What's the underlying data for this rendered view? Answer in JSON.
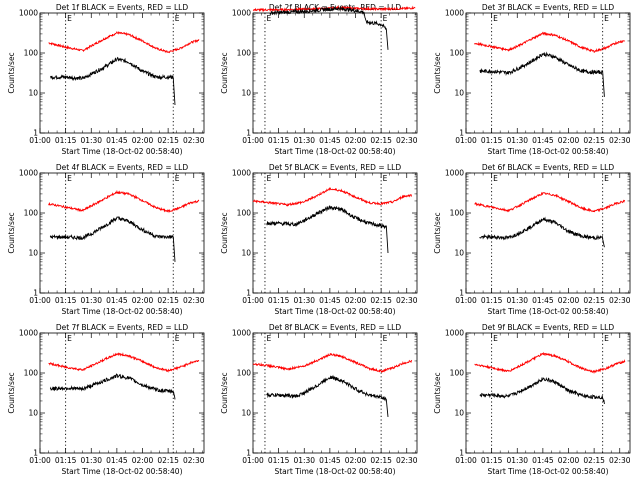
{
  "panels_layout": "3x3",
  "colors": {
    "events": "#000000",
    "lld": "#ff0000",
    "axes": "#000000",
    "marker": "#000000"
  },
  "chart_data": [
    {
      "type": "line",
      "title": "Det 1f BLACK = Events, RED = LLD",
      "xlabel": "Start Time (18-Oct-02 00:58:40)",
      "ylabel": "Counts/sec",
      "yscale": "log",
      "ylim": [
        1,
        1000
      ],
      "xlim": [
        "01:00",
        "02:36"
      ],
      "xticks": [
        "01:00",
        "01:15",
        "01:30",
        "01:45",
        "02:00",
        "02:15",
        "02:30"
      ],
      "yticks": [
        "1",
        "10",
        "100",
        "1000"
      ],
      "markers": [
        "01:15",
        "02:18"
      ],
      "marker_labels": [
        "E",
        "E"
      ],
      "series": [
        {
          "role": "lld",
          "x": [
            "01:05",
            "01:15",
            "01:25",
            "01:30",
            "01:38",
            "01:45",
            "01:52",
            "02:00",
            "02:08",
            "02:15",
            "02:22",
            "02:28",
            "02:33"
          ],
          "values": [
            180,
            140,
            115,
            150,
            230,
            320,
            290,
            200,
            130,
            105,
            130,
            180,
            210
          ]
        },
        {
          "role": "events",
          "x": [
            "01:06",
            "01:15",
            "01:25",
            "01:30",
            "01:38",
            "01:45",
            "01:52",
            "02:00",
            "02:08",
            "02:15",
            "02:18",
            "02:19"
          ],
          "values": [
            25,
            25,
            23,
            30,
            45,
            70,
            60,
            35,
            25,
            25,
            25,
            5
          ]
        }
      ]
    },
    {
      "type": "line",
      "title": "Det 2f BLACK = Events, RED = LLD",
      "xlabel": "Start Time (18-Oct-02 00:58:40)",
      "ylabel": "Counts/sec",
      "yscale": "log",
      "ylim": [
        1,
        1000
      ],
      "xlim": [
        "01:00",
        "02:36"
      ],
      "xticks": [
        "01:00",
        "01:15",
        "01:30",
        "01:45",
        "02:00",
        "02:15",
        "02:30"
      ],
      "yticks": [
        "1",
        "10",
        "100",
        "1000"
      ],
      "markers": [
        "01:07",
        "02:15"
      ],
      "marker_labels": [
        "E",
        "E"
      ],
      "series": [
        {
          "role": "lld",
          "x": [
            "01:00",
            "01:15",
            "01:30",
            "01:45",
            "01:50",
            "02:00",
            "02:15",
            "02:30",
            "02:35"
          ],
          "values": [
            1200,
            1200,
            1250,
            1300,
            1350,
            1300,
            1250,
            1300,
            1350
          ]
        },
        {
          "role": "events",
          "x": [
            "01:10",
            "01:20",
            "01:30",
            "01:45",
            "01:50",
            "02:00",
            "02:05",
            "02:06",
            "02:15",
            "02:18",
            "02:19"
          ],
          "values": [
            1000,
            1050,
            1100,
            1250,
            1300,
            1150,
            1050,
            600,
            520,
            400,
            120
          ]
        }
      ]
    },
    {
      "type": "line",
      "title": "Det 3f BLACK = Events, RED = LLD",
      "xlabel": "Start Time (18-Oct-02 00:58:40)",
      "ylabel": "Counts/sec",
      "yscale": "log",
      "ylim": [
        1,
        1000
      ],
      "xlim": [
        "01:00",
        "02:36"
      ],
      "xticks": [
        "01:00",
        "01:15",
        "01:30",
        "01:45",
        "02:00",
        "02:15",
        "02:30"
      ],
      "yticks": [
        "1",
        "10",
        "100",
        "1000"
      ],
      "markers": [
        "01:15",
        "02:20"
      ],
      "marker_labels": [
        "E",
        "E"
      ],
      "series": [
        {
          "role": "lld",
          "x": [
            "01:05",
            "01:15",
            "01:25",
            "01:30",
            "01:38",
            "01:45",
            "01:52",
            "02:00",
            "02:08",
            "02:15",
            "02:22",
            "02:28",
            "02:33"
          ],
          "values": [
            175,
            145,
            120,
            145,
            220,
            310,
            280,
            200,
            135,
            110,
            135,
            180,
            205
          ]
        },
        {
          "role": "events",
          "x": [
            "01:08",
            "01:15",
            "01:25",
            "01:30",
            "01:38",
            "01:45",
            "01:52",
            "02:00",
            "02:08",
            "02:15",
            "02:20",
            "02:21"
          ],
          "values": [
            35,
            35,
            32,
            40,
            60,
            95,
            80,
            50,
            35,
            33,
            33,
            8
          ]
        }
      ]
    },
    {
      "type": "line",
      "title": "Det 4f BLACK = Events, RED = LLD",
      "xlabel": "Start Time (18-Oct-02 00:58:40)",
      "ylabel": "Counts/sec",
      "yscale": "log",
      "ylim": [
        1,
        1000
      ],
      "xlim": [
        "01:00",
        "02:36"
      ],
      "xticks": [
        "01:00",
        "01:15",
        "01:30",
        "01:45",
        "02:00",
        "02:15",
        "02:30"
      ],
      "yticks": [
        "1",
        "10",
        "100",
        "1000"
      ],
      "markers": [
        "01:15",
        "02:18"
      ],
      "marker_labels": [
        "E",
        "E"
      ],
      "series": [
        {
          "role": "lld",
          "x": [
            "01:05",
            "01:15",
            "01:25",
            "01:30",
            "01:38",
            "01:45",
            "01:52",
            "02:00",
            "02:08",
            "02:15",
            "02:22",
            "02:28",
            "02:33"
          ],
          "values": [
            170,
            140,
            115,
            150,
            230,
            330,
            300,
            205,
            135,
            110,
            135,
            180,
            200
          ]
        },
        {
          "role": "events",
          "x": [
            "01:06",
            "01:15",
            "01:25",
            "01:30",
            "01:38",
            "01:45",
            "01:52",
            "02:00",
            "02:08",
            "02:15",
            "02:18",
            "02:19"
          ],
          "values": [
            25,
            25,
            24,
            30,
            48,
            75,
            62,
            38,
            26,
            25,
            25,
            6
          ]
        }
      ]
    },
    {
      "type": "line",
      "title": "Det 5f BLACK = Events, RED = LLD",
      "xlabel": "Start Time (18-Oct-02 00:58:40)",
      "ylabel": "Counts/sec",
      "yscale": "log",
      "ylim": [
        1,
        1000
      ],
      "xlim": [
        "01:00",
        "02:36"
      ],
      "xticks": [
        "01:00",
        "01:15",
        "01:30",
        "01:45",
        "02:00",
        "02:15",
        "02:30"
      ],
      "yticks": [
        "1",
        "10",
        "100",
        "1000"
      ],
      "markers": [
        "01:07",
        "02:15"
      ],
      "marker_labels": [
        "E",
        "E"
      ],
      "series": [
        {
          "role": "lld",
          "x": [
            "01:00",
            "01:10",
            "01:20",
            "01:30",
            "01:38",
            "01:45",
            "01:52",
            "02:00",
            "02:08",
            "02:15",
            "02:22",
            "02:28",
            "02:33"
          ],
          "values": [
            200,
            180,
            160,
            190,
            280,
            400,
            360,
            250,
            180,
            170,
            190,
            260,
            280
          ]
        },
        {
          "role": "events",
          "x": [
            "01:08",
            "01:15",
            "01:25",
            "01:30",
            "01:38",
            "01:45",
            "01:52",
            "02:00",
            "02:08",
            "02:15",
            "02:18",
            "02:19"
          ],
          "values": [
            55,
            55,
            52,
            65,
            100,
            140,
            120,
            75,
            55,
            48,
            45,
            10
          ]
        }
      ]
    },
    {
      "type": "line",
      "title": "Det 6f BLACK = Events, RED = LLD",
      "xlabel": "Start Time (18-Oct-02 00:58:40)",
      "ylabel": "Counts/sec",
      "yscale": "log",
      "ylim": [
        1,
        1000
      ],
      "xlim": [
        "01:00",
        "02:36"
      ],
      "xticks": [
        "01:00",
        "01:15",
        "01:30",
        "01:45",
        "02:00",
        "02:15",
        "02:30"
      ],
      "yticks": [
        "1",
        "10",
        "100",
        "1000"
      ],
      "markers": [
        "01:15",
        "02:20"
      ],
      "marker_labels": [
        "E",
        "E"
      ],
      "series": [
        {
          "role": "lld",
          "x": [
            "01:05",
            "01:15",
            "01:25",
            "01:30",
            "01:38",
            "01:45",
            "01:52",
            "02:00",
            "02:08",
            "02:15",
            "02:22",
            "02:28",
            "02:33"
          ],
          "values": [
            170,
            140,
            115,
            145,
            220,
            310,
            280,
            195,
            130,
            110,
            135,
            175,
            200
          ]
        },
        {
          "role": "events",
          "x": [
            "01:08",
            "01:15",
            "01:25",
            "01:30",
            "01:38",
            "01:45",
            "01:52",
            "02:00",
            "02:08",
            "02:15",
            "02:20",
            "02:21"
          ],
          "values": [
            25,
            25,
            24,
            30,
            45,
            70,
            58,
            35,
            26,
            24,
            24,
            14
          ]
        }
      ]
    },
    {
      "type": "line",
      "title": "Det 7f BLACK = Events, RED = LLD",
      "xlabel": "Start Time (18-Oct-02 00:58:40)",
      "ylabel": "Counts/sec",
      "yscale": "log",
      "ylim": [
        1,
        1000
      ],
      "xlim": [
        "01:00",
        "02:36"
      ],
      "xticks": [
        "01:00",
        "01:15",
        "01:30",
        "01:45",
        "02:00",
        "02:15",
        "02:30"
      ],
      "yticks": [
        "1",
        "10",
        "100",
        "1000"
      ],
      "markers": [
        "01:15",
        "02:18"
      ],
      "marker_labels": [
        "E",
        "E"
      ],
      "series": [
        {
          "role": "lld",
          "x": [
            "01:05",
            "01:15",
            "01:25",
            "01:30",
            "01:38",
            "01:45",
            "01:52",
            "02:00",
            "02:08",
            "02:15",
            "02:22",
            "02:28",
            "02:33"
          ],
          "values": [
            175,
            140,
            120,
            150,
            220,
            300,
            270,
            195,
            135,
            115,
            140,
            180,
            205
          ]
        },
        {
          "role": "events",
          "x": [
            "01:06",
            "01:15",
            "01:25",
            "01:30",
            "01:38",
            "01:45",
            "01:52",
            "02:00",
            "02:08",
            "02:15",
            "02:18",
            "02:19"
          ],
          "values": [
            40,
            42,
            40,
            48,
            65,
            85,
            75,
            50,
            38,
            35,
            35,
            22
          ]
        }
      ]
    },
    {
      "type": "line",
      "title": "Det 8f BLACK = Events, RED = LLD",
      "xlabel": "Start Time (18-Oct-02 00:58:40)",
      "ylabel": "Counts/sec",
      "yscale": "log",
      "ylim": [
        1,
        1000
      ],
      "xlim": [
        "01:00",
        "02:36"
      ],
      "xticks": [
        "01:00",
        "01:15",
        "01:30",
        "01:45",
        "02:00",
        "02:15",
        "02:30"
      ],
      "yticks": [
        "1",
        "10",
        "100",
        "1000"
      ],
      "markers": [
        "01:07",
        "02:15"
      ],
      "marker_labels": [
        "E",
        "E"
      ],
      "series": [
        {
          "role": "lld",
          "x": [
            "01:00",
            "01:10",
            "01:20",
            "01:30",
            "01:38",
            "01:45",
            "01:52",
            "02:00",
            "02:08",
            "02:15",
            "02:22",
            "02:28",
            "02:33"
          ],
          "values": [
            170,
            150,
            125,
            150,
            210,
            290,
            260,
            185,
            130,
            110,
            135,
            175,
            200
          ]
        },
        {
          "role": "events",
          "x": [
            "01:08",
            "01:15",
            "01:25",
            "01:30",
            "01:38",
            "01:45",
            "01:52",
            "02:00",
            "02:08",
            "02:15",
            "02:18",
            "02:19"
          ],
          "values": [
            28,
            28,
            26,
            32,
            50,
            80,
            65,
            40,
            28,
            25,
            22,
            8
          ]
        }
      ]
    },
    {
      "type": "line",
      "title": "Det 9f BLACK = Events, RED = LLD",
      "xlabel": "Start Time (18-Oct-02 00:58:40)",
      "ylabel": "Counts/sec",
      "yscale": "log",
      "ylim": [
        1,
        1000
      ],
      "xlim": [
        "01:00",
        "02:36"
      ],
      "xticks": [
        "01:00",
        "01:15",
        "01:30",
        "01:45",
        "02:00",
        "02:15",
        "02:30"
      ],
      "yticks": [
        "1",
        "10",
        "100",
        "1000"
      ],
      "markers": [
        "01:15",
        "02:20"
      ],
      "marker_labels": [
        "E",
        "E"
      ],
      "series": [
        {
          "role": "lld",
          "x": [
            "01:05",
            "01:15",
            "01:25",
            "01:30",
            "01:38",
            "01:45",
            "01:52",
            "02:00",
            "02:08",
            "02:15",
            "02:22",
            "02:28",
            "02:33"
          ],
          "values": [
            165,
            135,
            110,
            140,
            210,
            300,
            270,
            190,
            128,
            108,
            130,
            170,
            195
          ]
        },
        {
          "role": "events",
          "x": [
            "01:08",
            "01:15",
            "01:25",
            "01:30",
            "01:38",
            "01:45",
            "01:52",
            "02:00",
            "02:08",
            "02:15",
            "02:20",
            "02:21"
          ],
          "values": [
            28,
            28,
            26,
            32,
            48,
            72,
            60,
            36,
            27,
            25,
            25,
            18
          ]
        }
      ]
    }
  ]
}
